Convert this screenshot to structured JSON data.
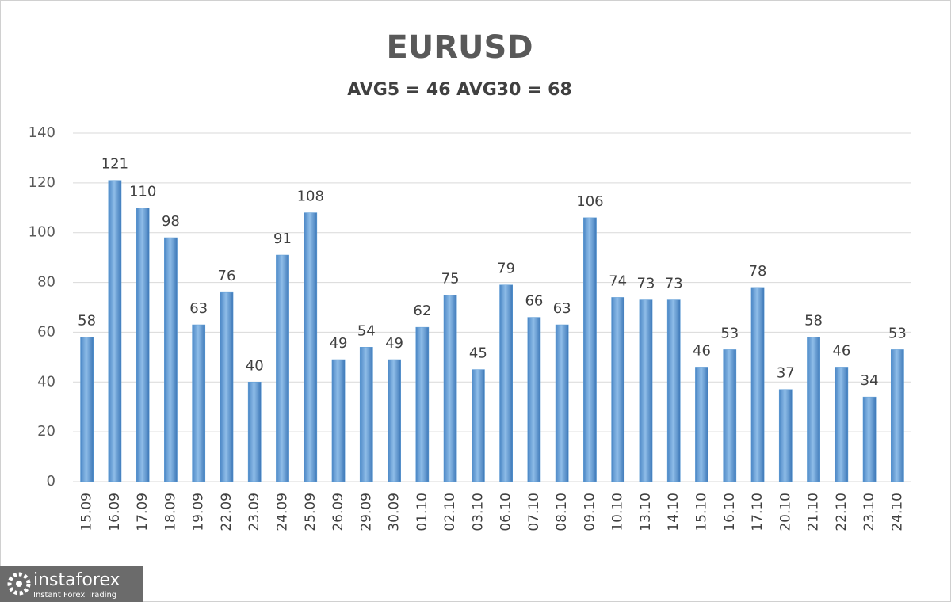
{
  "chart_data": {
    "type": "bar",
    "title": "EURUSD",
    "subtitle": "AVG5 = 46 AVG30 = 68",
    "categories": [
      "15.09",
      "16.09",
      "17.09",
      "18.09",
      "19.09",
      "22.09",
      "23.09",
      "24.09",
      "25.09",
      "26.09",
      "29.09",
      "30.09",
      "01.10",
      "02.10",
      "03.10",
      "06.10",
      "07.10",
      "08.10",
      "09.10",
      "10.10",
      "13.10",
      "14.10",
      "15.10",
      "16.10",
      "17.10",
      "20.10",
      "21.10",
      "22.10",
      "23.10",
      "24.10"
    ],
    "values": [
      58,
      121,
      110,
      98,
      63,
      76,
      40,
      91,
      108,
      49,
      54,
      49,
      62,
      75,
      45,
      79,
      66,
      63,
      106,
      74,
      73,
      73,
      46,
      53,
      78,
      37,
      58,
      46,
      34,
      53
    ],
    "color": "#5b9bd5",
    "ylim": [
      0,
      140
    ],
    "yticks": [
      0,
      20,
      40,
      60,
      80,
      100,
      120,
      140
    ],
    "grid": true
  },
  "logo": {
    "name": "instaforex",
    "tagline": "Instant Forex Trading"
  }
}
